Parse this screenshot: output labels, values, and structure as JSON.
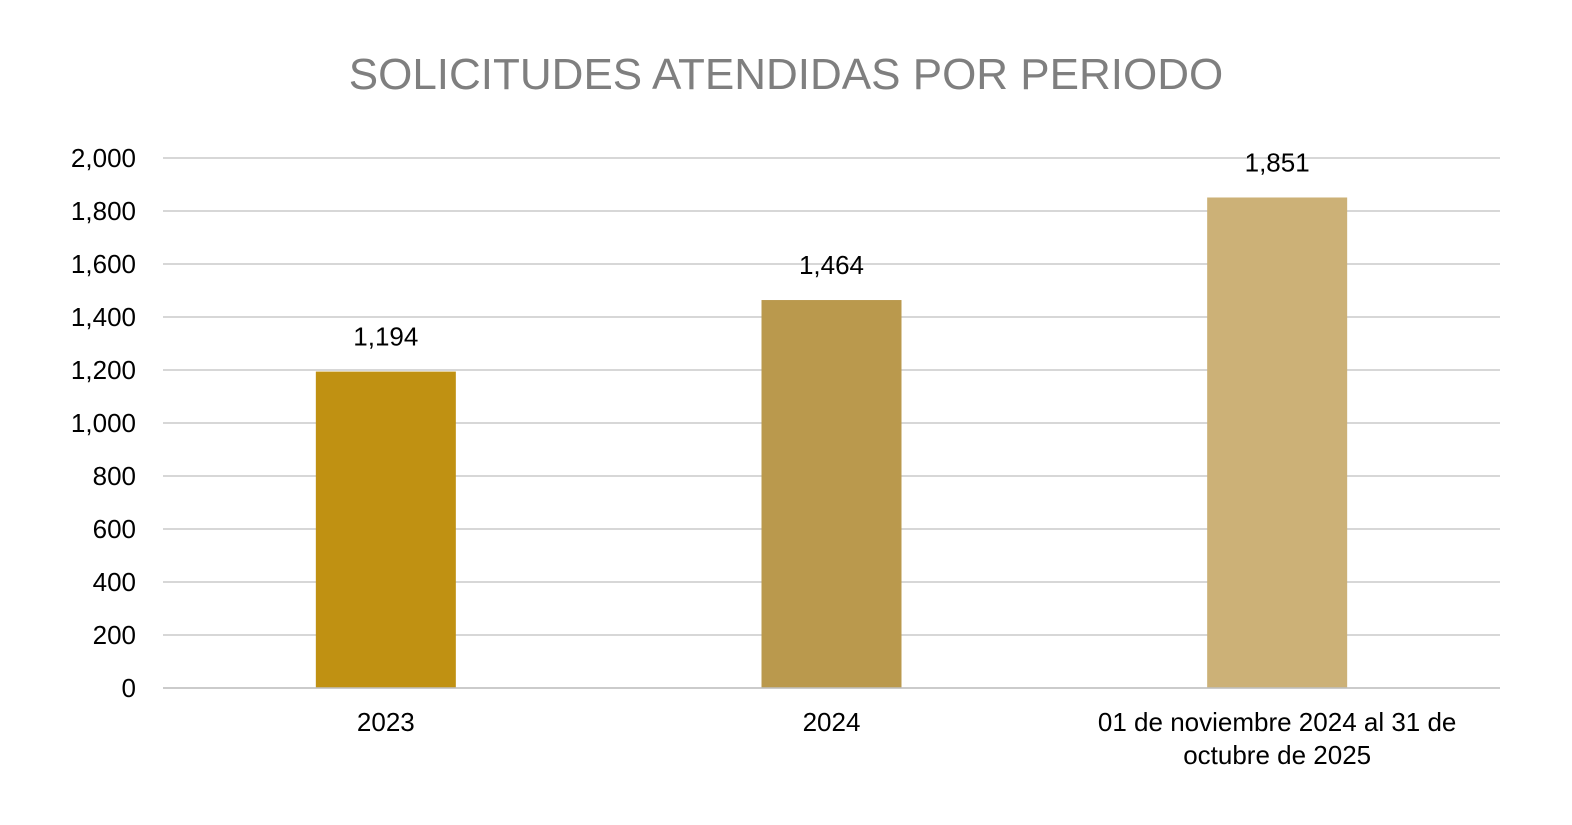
{
  "chart_data": {
    "type": "bar",
    "title": "SOLICITUDES ATENDIDAS POR PERIODO",
    "categories": [
      "2023",
      "2024",
      "01 de noviembre 2024 al 31 de octubre de 2025"
    ],
    "category_lines": [
      [
        "2023"
      ],
      [
        "2024"
      ],
      [
        "01 de noviembre 2024 al 31 de",
        "octubre de 2025"
      ]
    ],
    "values": [
      1194,
      1464,
      1851
    ],
    "value_labels": [
      "1,194",
      "1,464",
      "1,851"
    ],
    "bar_colors": [
      "#c09112",
      "#ba994d",
      "#ccb177"
    ],
    "ylim": [
      0,
      2000
    ],
    "yticks": [
      0,
      200,
      400,
      600,
      800,
      1000,
      1200,
      1400,
      1600,
      1800,
      2000
    ],
    "ytick_labels": [
      "0",
      "200",
      "400",
      "600",
      "800",
      "1,000",
      "1,200",
      "1,400",
      "1,600",
      "1,800",
      "2,000"
    ],
    "grid": true,
    "grid_color": "#bfbfbf",
    "legend": "none",
    "xlabel": "",
    "ylabel": ""
  }
}
